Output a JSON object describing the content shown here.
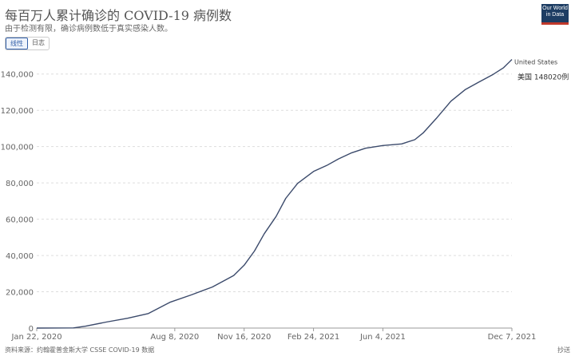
{
  "header": {
    "title": "每百万人累计确诊的 COVID-19 病例数",
    "subtitle": "由于检测有限，确诊病例数低于真实感染人数。"
  },
  "logo": {
    "line1": "Our World",
    "line2": "in Data"
  },
  "toggle": {
    "linear": "线性",
    "log": "日志"
  },
  "footer": {
    "source": "资料来源：约翰霍普金斯大学 CSSE COVID-19 数据",
    "license": "抄送"
  },
  "colors": {
    "line": "#3b4a6b",
    "grid": "#dddddd",
    "text": "#666666"
  },
  "chart_data": {
    "type": "line",
    "title": "每百万人累计确诊的 COVID-19 病例数",
    "xlabel": "",
    "ylabel": "",
    "ylim": [
      0,
      150000
    ],
    "yticks": [
      0,
      20000,
      40000,
      60000,
      80000,
      100000,
      120000,
      140000
    ],
    "ytick_labels": [
      "0",
      "20,000",
      "40,000",
      "60,000",
      "80,000",
      "100,000",
      "120,000",
      "140,000"
    ],
    "xlim": [
      "2020-01-22",
      "2021-12-07"
    ],
    "xticks": [
      "2020-01-22",
      "2020-08-08",
      "2020-11-16",
      "2021-02-24",
      "2021-06-04",
      "2021-12-07"
    ],
    "xtick_labels": [
      "Jan 22, 2020",
      "Aug 8, 2020",
      "Nov 16, 2020",
      "Feb 24, 2021",
      "Jun 4, 2021",
      "Dec 7, 2021"
    ],
    "grid": true,
    "series": [
      {
        "name": "United States",
        "end_label": "美国 148020例",
        "points": [
          [
            "2020-01-22",
            0
          ],
          [
            "2020-03-15",
            100
          ],
          [
            "2020-04-01",
            1000
          ],
          [
            "2020-05-01",
            3300
          ],
          [
            "2020-06-01",
            5400
          ],
          [
            "2020-07-01",
            8000
          ],
          [
            "2020-08-01",
            14200
          ],
          [
            "2020-09-01",
            18300
          ],
          [
            "2020-10-01",
            22600
          ],
          [
            "2020-10-20",
            26500
          ],
          [
            "2020-11-01",
            29000
          ],
          [
            "2020-11-16",
            34600
          ],
          [
            "2020-12-01",
            42500
          ],
          [
            "2020-12-15",
            52000
          ],
          [
            "2021-01-01",
            61500
          ],
          [
            "2021-01-15",
            71500
          ],
          [
            "2021-02-01",
            79700
          ],
          [
            "2021-02-24",
            86300
          ],
          [
            "2021-03-15",
            89600
          ],
          [
            "2021-04-01",
            93200
          ],
          [
            "2021-04-20",
            96600
          ],
          [
            "2021-05-10",
            99100
          ],
          [
            "2021-06-04",
            100600
          ],
          [
            "2021-07-01",
            101500
          ],
          [
            "2021-07-20",
            103800
          ],
          [
            "2021-08-01",
            107500
          ],
          [
            "2021-08-20",
            115500
          ],
          [
            "2021-09-10",
            125000
          ],
          [
            "2021-10-01",
            131500
          ],
          [
            "2021-10-20",
            135500
          ],
          [
            "2021-11-10",
            139800
          ],
          [
            "2021-11-25",
            143500
          ],
          [
            "2021-12-07",
            148020
          ]
        ]
      }
    ]
  }
}
